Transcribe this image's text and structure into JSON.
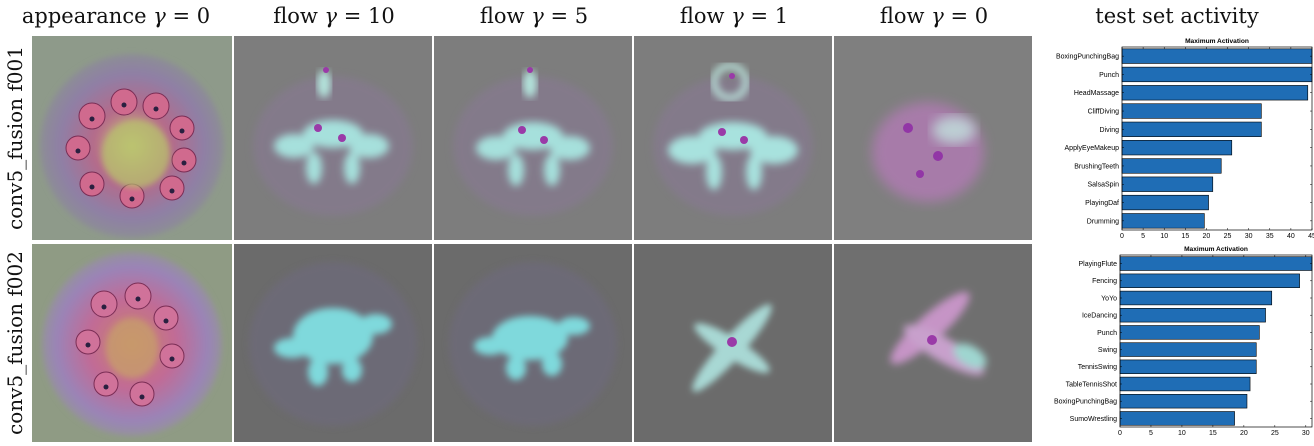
{
  "columns": [
    {
      "prefix": "appearance",
      "gamma": "0"
    },
    {
      "prefix": "flow",
      "gamma": "10"
    },
    {
      "prefix": "flow",
      "gamma": "5"
    },
    {
      "prefix": "flow",
      "gamma": "1"
    },
    {
      "prefix": "flow",
      "gamma": "0"
    }
  ],
  "activity_title": "test set activity",
  "rows": [
    {
      "label": "conv5_fusion f001"
    },
    {
      "label": "conv5_fusion f002"
    }
  ],
  "colors": {
    "bar": "#1f6db5",
    "tile_bg_row1": "#7d7d7d",
    "tile_bg_row2": "#6b6b6b"
  },
  "chart_data": [
    {
      "type": "bar",
      "orientation": "horizontal",
      "title": "Maximum Activation",
      "categories": [
        "BoxingPunchingBag",
        "Punch",
        "HeadMassage",
        "CliffDiving",
        "Diving",
        "ApplyEyeMakeup",
        "BrushingTeeth",
        "SalsaSpin",
        "PlayingDaf",
        "Drumming"
      ],
      "values": [
        45.5,
        45.5,
        44.0,
        33.0,
        33.0,
        26.0,
        23.5,
        21.5,
        20.5,
        19.5
      ],
      "xlim": [
        0,
        45
      ],
      "xticks": [
        0,
        5,
        10,
        15,
        20,
        25,
        30,
        35,
        40,
        45
      ]
    },
    {
      "type": "bar",
      "orientation": "horizontal",
      "title": "Maximum Activation",
      "categories": [
        "PlayingFlute",
        "Fencing",
        "YoYo",
        "IceDancing",
        "Punch",
        "Swing",
        "TennisSwing",
        "TableTennisShot",
        "BoxingPunchingBag",
        "SumoWrestling"
      ],
      "values": [
        31.0,
        29.0,
        24.5,
        23.5,
        22.5,
        22.0,
        22.0,
        21.0,
        20.5,
        18.5
      ],
      "xlim": [
        0,
        31
      ],
      "xticks": [
        0,
        5,
        10,
        15,
        20,
        25,
        30
      ]
    }
  ]
}
